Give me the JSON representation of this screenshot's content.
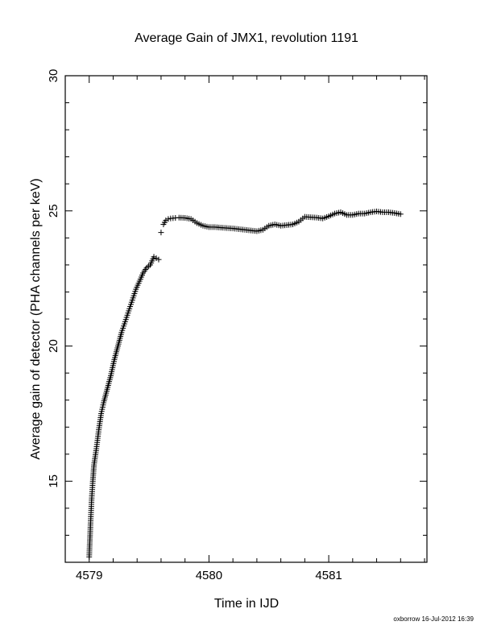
{
  "chart_data": {
    "type": "scatter",
    "title": "Average Gain of JMX1, revolution 1191",
    "xlabel": "Time in IJD",
    "ylabel": "Average gain of detector (PHA channels per keV)",
    "xlim": [
      4578.8,
      4581.82
    ],
    "ylim": [
      12,
      30
    ],
    "x_ticks": [
      4579,
      4580,
      4581
    ],
    "x_tick_labels": [
      "4579",
      "4580",
      "4581"
    ],
    "y_ticks": [
      15,
      20,
      25,
      30
    ],
    "y_tick_labels": [
      "15",
      "20",
      "25",
      "30"
    ],
    "marker": "+",
    "color": "#000000",
    "grid": false,
    "series": [
      {
        "x": [
          4579.0,
          4579.01,
          4579.02,
          4579.03,
          4579.04,
          4579.06,
          4579.08,
          4579.1,
          4579.12,
          4579.15,
          4579.18,
          4579.21,
          4579.24,
          4579.27,
          4579.3,
          4579.33,
          4579.36,
          4579.39,
          4579.42,
          4579.45,
          4579.48,
          4579.51,
          4579.54,
          4579.56,
          4579.58,
          4579.6,
          4579.62,
          4579.64,
          4579.66,
          4579.68,
          4579.7,
          4579.72,
          4579.75,
          4579.8,
          4579.85,
          4579.9,
          4579.95,
          4580.0,
          4580.05,
          4580.1,
          4580.2,
          4580.3,
          4580.4,
          4580.45,
          4580.5,
          4580.55,
          4580.6,
          4580.7,
          4580.75,
          4580.8,
          4580.9,
          4580.95,
          4581.0,
          4581.05,
          4581.1,
          4581.15,
          4581.2,
          4581.25,
          4581.3,
          4581.35,
          4581.4,
          4581.45,
          4581.5,
          4581.55,
          4581.6
        ],
        "y": [
          12.2,
          13.3,
          14.3,
          15.0,
          15.6,
          16.2,
          16.9,
          17.5,
          17.9,
          18.4,
          18.9,
          19.5,
          20.0,
          20.5,
          20.9,
          21.3,
          21.7,
          22.1,
          22.4,
          22.7,
          22.9,
          23.0,
          23.3,
          23.25,
          23.2,
          24.2,
          24.5,
          24.65,
          24.7,
          24.72,
          24.73,
          24.74,
          24.75,
          24.74,
          24.7,
          24.55,
          24.45,
          24.4,
          24.4,
          24.38,
          24.35,
          24.3,
          24.25,
          24.3,
          24.45,
          24.5,
          24.45,
          24.5,
          24.6,
          24.78,
          24.75,
          24.72,
          24.8,
          24.9,
          24.95,
          24.85,
          24.85,
          24.9,
          24.9,
          24.95,
          24.98,
          24.95,
          24.95,
          24.92,
          24.88
        ]
      }
    ],
    "footer": "oxborrow 16-Jul-2012 16:39"
  }
}
